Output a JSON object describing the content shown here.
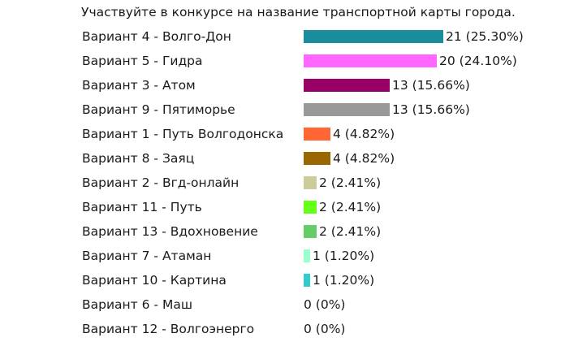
{
  "chart_data": {
    "type": "bar",
    "orientation": "horizontal",
    "title": "Участвуйте в конкурсе на название транспортной карты города.",
    "xlabel": "",
    "ylabel": "",
    "grid": false,
    "categories": [
      "Вариант 4 - Волго-Дон",
      "Вариант 5 - Гидра",
      "Вариант 3 - Атом",
      "Вариант 9 - Пятиморье",
      "Вариант 1 - Путь Волгодонска",
      "Вариант 8 - Заяц",
      "Вариант 2 - Вгд-онлайн",
      "Вариант 11 - Путь",
      "Вариант 13 - Вдохновение",
      "Вариант 7 - Атаман",
      "Вариант 10 - Картина",
      "Вариант 6 - Маш",
      "Вариант 12 - Волгоэнерго"
    ],
    "values": [
      21,
      20,
      13,
      13,
      4,
      4,
      2,
      2,
      2,
      1,
      1,
      0,
      0
    ],
    "value_labels": [
      "21 (25.30%)",
      "20 (24.10%)",
      "13 (15.66%)",
      "13 (15.66%)",
      "4 (4.82%)",
      "4 (4.82%)",
      "2 (2.41%)",
      "2 (2.41%)",
      "2 (2.41%)",
      "1 (1.20%)",
      "1 (1.20%)",
      "0 (0%)",
      "0 (0%)"
    ],
    "colors": [
      "#1a8c9c",
      "#ff66ff",
      "#990066",
      "#999999",
      "#ff6633",
      "#996600",
      "#cccc99",
      "#66ff1a",
      "#66cc66",
      "#99ffcc",
      "#33cccc",
      "#cccccc",
      "#cccccc"
    ],
    "xlim": [
      0,
      21
    ]
  }
}
